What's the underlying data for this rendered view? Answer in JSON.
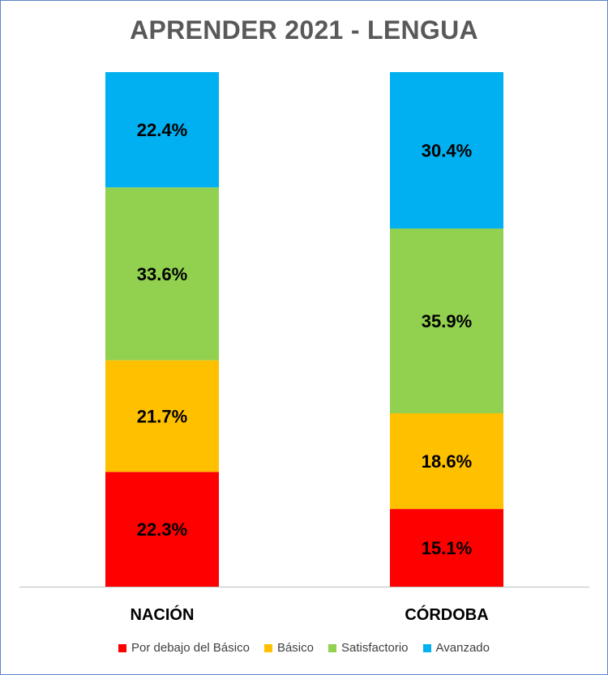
{
  "chart_data": {
    "type": "bar",
    "stacked": true,
    "title": "APRENDER 2021 - LENGUA",
    "categories": [
      "NACIÓN",
      "CÓRDOBA"
    ],
    "ylim": [
      0,
      100
    ],
    "grid": false,
    "legend_position": "bottom",
    "series": [
      {
        "name": "Por debajo del Básico",
        "color": "#ff0000",
        "values": [
          22.3,
          15.1
        ],
        "labels": [
          "22.3%",
          "15.1%"
        ]
      },
      {
        "name": "Básico",
        "color": "#ffc000",
        "values": [
          21.7,
          18.6
        ],
        "labels": [
          "21.7%",
          "18.6%"
        ]
      },
      {
        "name": "Satisfactorio",
        "color": "#92d050",
        "values": [
          33.6,
          35.9
        ],
        "labels": [
          "33.6%",
          "35.9%"
        ]
      },
      {
        "name": "Avanzado",
        "color": "#00b0f0",
        "values": [
          22.4,
          30.4
        ],
        "labels": [
          "22.4%",
          "30.4%"
        ]
      }
    ]
  }
}
